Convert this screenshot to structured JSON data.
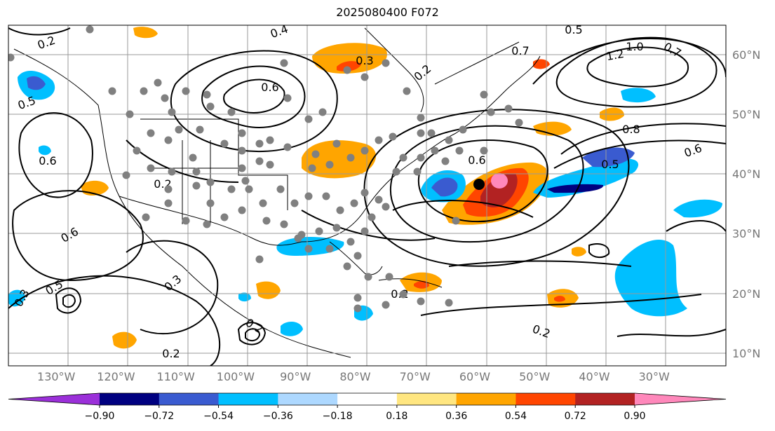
{
  "title": "2025080400 F072",
  "lat_labels": [
    {
      "text": "60°N",
      "lat": 60
    },
    {
      "text": "50°N",
      "lat": 50
    },
    {
      "text": "40°N",
      "lat": 40
    },
    {
      "text": "30°N",
      "lat": 30
    },
    {
      "text": "20°N",
      "lat": 20
    },
    {
      "text": "10°N",
      "lat": 10
    }
  ],
  "lon_labels": [
    {
      "text": "130°W",
      "lon": -130
    },
    {
      "text": "120°W",
      "lon": -120
    },
    {
      "text": "110°W",
      "lon": -110
    },
    {
      "text": "100°W",
      "lon": -100
    },
    {
      "text": "90°W",
      "lon": -90
    },
    {
      "text": "80°W",
      "lon": -80
    },
    {
      "text": "70°W",
      "lon": -70
    },
    {
      "text": "60°W",
      "lon": -60
    },
    {
      "text": "50°W",
      "lon": -50
    },
    {
      "text": "40°W",
      "lon": -40
    },
    {
      "text": "30°W",
      "lon": -30
    }
  ],
  "map_extent": {
    "lon": [
      -138,
      -18
    ],
    "lat": [
      8,
      65
    ]
  },
  "colorbar": {
    "ticks": [
      "−0.90",
      "−0.72",
      "−0.54",
      "−0.36",
      "−0.18",
      "0.18",
      "0.36",
      "0.54",
      "0.72",
      "0.90"
    ],
    "colors": [
      "#9b30d9",
      "#000080",
      "#3a5bd0",
      "#00bfff",
      "#add8ff",
      "#ffffff",
      "#ffe680",
      "#ffa500",
      "#ff4500",
      "#b22222",
      "#ff88bb"
    ]
  },
  "contour_labels": [
    "0.2",
    "0.4",
    "0.5",
    "0.6",
    "0.7",
    "0.8",
    "1.0",
    "1.2",
    "0.3",
    "−0.5"
  ],
  "colors": {
    "grid": "#999999",
    "land_outline": "#000000",
    "contour": "#000000",
    "station": "#808080"
  }
}
